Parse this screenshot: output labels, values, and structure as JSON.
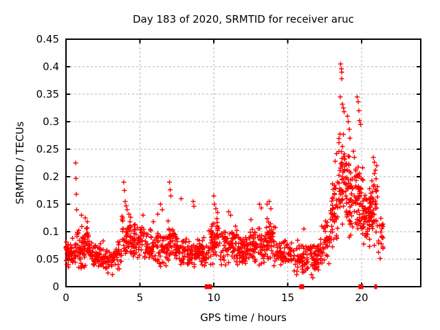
{
  "chart_data": {
    "type": "scatter",
    "title": "Day 183 of 2020, SRMTID for receiver aruc",
    "xlabel": "GPS time / hours",
    "ylabel": "SRMTID / TECUs",
    "xlim": [
      0,
      24
    ],
    "ylim": [
      0,
      0.45
    ],
    "xtick_values": [
      0,
      5,
      10,
      15,
      20
    ],
    "xtick_labels": [
      "0",
      "5",
      "10",
      "15",
      "20"
    ],
    "ytick_values": [
      0,
      0.05,
      0.1,
      0.15,
      0.2,
      0.25,
      0.3,
      0.35,
      0.4,
      0.45
    ],
    "ytick_labels": [
      "0",
      "0.05",
      "0.1",
      "0.15",
      "0.2",
      "0.25",
      "0.3",
      "0.35",
      "0.4",
      "0.45"
    ],
    "grid": true,
    "legend": "none",
    "marker": "plus",
    "marker_color": "#ff0000",
    "grid_color": "#b0b0b0",
    "axis_color": "#000000",
    "background": "#ffffff",
    "seed": 42,
    "bands_comment": "dense noise bands [x_start_h, x_end_h, n_points, y_center_TECU, y_halfwidth_TECU]",
    "bands": [
      [
        0.0,
        0.6,
        50,
        0.06,
        0.032
      ],
      [
        0.6,
        0.95,
        22,
        0.07,
        0.04
      ],
      [
        0.95,
        1.6,
        55,
        0.072,
        0.042
      ],
      [
        1.6,
        2.5,
        60,
        0.055,
        0.03
      ],
      [
        2.5,
        3.3,
        45,
        0.048,
        0.028
      ],
      [
        3.3,
        3.8,
        25,
        0.058,
        0.032
      ],
      [
        3.8,
        4.4,
        48,
        0.092,
        0.048
      ],
      [
        4.4,
        5.3,
        55,
        0.078,
        0.038
      ],
      [
        5.3,
        6.3,
        60,
        0.073,
        0.036
      ],
      [
        6.3,
        6.9,
        40,
        0.07,
        0.036
      ],
      [
        6.9,
        7.4,
        35,
        0.085,
        0.045
      ],
      [
        7.4,
        8.1,
        45,
        0.068,
        0.035
      ],
      [
        8.1,
        9.4,
        80,
        0.063,
        0.033
      ],
      [
        9.4,
        9.8,
        14,
        0.068,
        0.038
      ],
      [
        9.8,
        10.6,
        55,
        0.08,
        0.045
      ],
      [
        10.6,
        11.6,
        65,
        0.075,
        0.04
      ],
      [
        11.6,
        12.6,
        65,
        0.068,
        0.035
      ],
      [
        12.6,
        13.4,
        55,
        0.075,
        0.04
      ],
      [
        13.4,
        14.2,
        55,
        0.08,
        0.045
      ],
      [
        14.2,
        15.3,
        65,
        0.058,
        0.03
      ],
      [
        15.3,
        16.4,
        60,
        0.055,
        0.033
      ],
      [
        16.4,
        17.2,
        45,
        0.055,
        0.034
      ],
      [
        17.2,
        17.9,
        45,
        0.08,
        0.045
      ],
      [
        17.9,
        18.4,
        45,
        0.13,
        0.07
      ],
      [
        18.4,
        19.0,
        60,
        0.19,
        0.1
      ],
      [
        19.0,
        19.6,
        55,
        0.17,
        0.09
      ],
      [
        19.6,
        20.1,
        55,
        0.16,
        0.08
      ],
      [
        20.1,
        20.6,
        50,
        0.125,
        0.06
      ],
      [
        20.6,
        21.1,
        45,
        0.14,
        0.07
      ],
      [
        21.1,
        21.45,
        20,
        0.09,
        0.045
      ]
    ],
    "notable_points_comment": "explicit outlier / peak points [hours, TECU]",
    "notable_points": [
      [
        0.65,
        0.225
      ],
      [
        0.68,
        0.197
      ],
      [
        0.7,
        0.168
      ],
      [
        0.72,
        0.14
      ],
      [
        1.05,
        0.13
      ],
      [
        1.3,
        0.125
      ],
      [
        1.45,
        0.118
      ],
      [
        3.9,
        0.19
      ],
      [
        3.95,
        0.175
      ],
      [
        4.0,
        0.155
      ],
      [
        4.08,
        0.147
      ],
      [
        4.15,
        0.14
      ],
      [
        5.2,
        0.13
      ],
      [
        5.9,
        0.118
      ],
      [
        6.2,
        0.132
      ],
      [
        6.4,
        0.15
      ],
      [
        6.5,
        0.14
      ],
      [
        7.0,
        0.19
      ],
      [
        7.05,
        0.176
      ],
      [
        7.1,
        0.165
      ],
      [
        7.8,
        0.16
      ],
      [
        8.6,
        0.155
      ],
      [
        8.65,
        0.146
      ],
      [
        10.0,
        0.165
      ],
      [
        10.05,
        0.15
      ],
      [
        10.15,
        0.142
      ],
      [
        10.25,
        0.135
      ],
      [
        11.0,
        0.136
      ],
      [
        11.15,
        0.13
      ],
      [
        12.5,
        0.122
      ],
      [
        13.1,
        0.15
      ],
      [
        13.2,
        0.143
      ],
      [
        13.6,
        0.15
      ],
      [
        13.75,
        0.155
      ],
      [
        13.85,
        0.142
      ],
      [
        15.6,
        0.022
      ],
      [
        16.0,
        0.026
      ],
      [
        16.1,
        0.105
      ],
      [
        16.6,
        0.022
      ],
      [
        16.7,
        0.016
      ],
      [
        18.2,
        0.228
      ],
      [
        18.3,
        0.242
      ],
      [
        18.58,
        0.405
      ],
      [
        18.62,
        0.396
      ],
      [
        18.65,
        0.39
      ],
      [
        18.64,
        0.378
      ],
      [
        18.55,
        0.345
      ],
      [
        18.7,
        0.332
      ],
      [
        18.76,
        0.325
      ],
      [
        18.82,
        0.318
      ],
      [
        19.05,
        0.31
      ],
      [
        19.1,
        0.3
      ],
      [
        19.16,
        0.286
      ],
      [
        19.22,
        0.27
      ],
      [
        19.7,
        0.345
      ],
      [
        19.76,
        0.336
      ],
      [
        19.82,
        0.32
      ],
      [
        19.86,
        0.302
      ],
      [
        19.92,
        0.295
      ],
      [
        20.8,
        0.235
      ],
      [
        20.86,
        0.226
      ],
      [
        20.92,
        0.212
      ],
      [
        20.97,
        0.196
      ],
      [
        21.02,
        0.22
      ]
    ],
    "zero_markers_comment": "red filled squares sitting on y=0 axis [hours, px_width]",
    "zero_markers": [
      [
        9.55,
        7
      ],
      [
        9.72,
        7
      ],
      [
        15.95,
        7
      ],
      [
        19.95,
        7
      ],
      [
        20.95,
        4
      ]
    ]
  }
}
